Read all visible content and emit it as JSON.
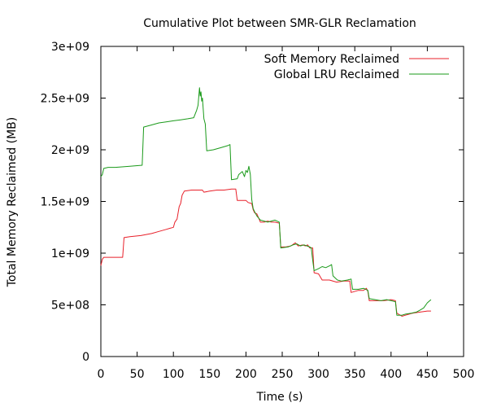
{
  "chart_data": {
    "type": "line",
    "title": "Cumulative Plot between SMR-GLR Reclamation",
    "xlabel": "Time (s)",
    "ylabel": "Total Memory Reclaimed (MB)",
    "xlim": [
      0,
      500
    ],
    "ylim": [
      0,
      3000000000
    ],
    "x_ticks": [
      0,
      50,
      100,
      150,
      200,
      250,
      300,
      350,
      400,
      450,
      500
    ],
    "x_tick_labels": [
      "0",
      "50",
      "100",
      "150",
      "200",
      "250",
      "300",
      "350",
      "400",
      "450",
      "500"
    ],
    "y_ticks": [
      0,
      500000000,
      1000000000,
      1500000000,
      2000000000,
      2500000000,
      3000000000
    ],
    "y_tick_labels": [
      "0",
      "5e+08",
      "1e+09",
      "1.5e+09",
      "2e+09",
      "2.5e+09",
      "3e+09"
    ],
    "grid": false,
    "legend_position": "top-right",
    "series": [
      {
        "name": "Soft Memory Reclaimed",
        "color": "#e8202a",
        "points": [
          [
            0,
            880000000
          ],
          [
            2,
            940000000
          ],
          [
            4,
            960000000
          ],
          [
            10,
            960000000
          ],
          [
            20,
            960000000
          ],
          [
            30,
            960000000
          ],
          [
            32,
            1150000000
          ],
          [
            40,
            1160000000
          ],
          [
            55,
            1170000000
          ],
          [
            70,
            1190000000
          ],
          [
            80,
            1210000000
          ],
          [
            90,
            1230000000
          ],
          [
            95,
            1240000000
          ],
          [
            100,
            1250000000
          ],
          [
            102,
            1300000000
          ],
          [
            105,
            1330000000
          ],
          [
            108,
            1450000000
          ],
          [
            110,
            1480000000
          ],
          [
            112,
            1560000000
          ],
          [
            115,
            1600000000
          ],
          [
            125,
            1610000000
          ],
          [
            140,
            1610000000
          ],
          [
            142,
            1590000000
          ],
          [
            150,
            1600000000
          ],
          [
            160,
            1610000000
          ],
          [
            170,
            1610000000
          ],
          [
            180,
            1620000000
          ],
          [
            186,
            1620000000
          ],
          [
            188,
            1510000000
          ],
          [
            195,
            1510000000
          ],
          [
            200,
            1510000000
          ],
          [
            203,
            1490000000
          ],
          [
            208,
            1480000000
          ],
          [
            210,
            1420000000
          ],
          [
            212,
            1390000000
          ],
          [
            215,
            1380000000
          ],
          [
            220,
            1300000000
          ],
          [
            225,
            1300000000
          ],
          [
            230,
            1310000000
          ],
          [
            235,
            1300000000
          ],
          [
            240,
            1300000000
          ],
          [
            246,
            1290000000
          ],
          [
            248,
            1060000000
          ],
          [
            255,
            1060000000
          ],
          [
            262,
            1070000000
          ],
          [
            268,
            1100000000
          ],
          [
            272,
            1070000000
          ],
          [
            278,
            1080000000
          ],
          [
            282,
            1070000000
          ],
          [
            285,
            1080000000
          ],
          [
            288,
            1050000000
          ],
          [
            292,
            1050000000
          ],
          [
            294,
            810000000
          ],
          [
            300,
            800000000
          ],
          [
            305,
            740000000
          ],
          [
            315,
            740000000
          ],
          [
            325,
            720000000
          ],
          [
            335,
            730000000
          ],
          [
            343,
            730000000
          ],
          [
            345,
            620000000
          ],
          [
            355,
            640000000
          ],
          [
            362,
            640000000
          ],
          [
            366,
            660000000
          ],
          [
            368,
            630000000
          ],
          [
            370,
            540000000
          ],
          [
            380,
            540000000
          ],
          [
            390,
            540000000
          ],
          [
            400,
            550000000
          ],
          [
            406,
            540000000
          ],
          [
            408,
            420000000
          ],
          [
            415,
            390000000
          ],
          [
            420,
            400000000
          ],
          [
            425,
            410000000
          ],
          [
            430,
            420000000
          ],
          [
            440,
            430000000
          ],
          [
            450,
            440000000
          ],
          [
            455,
            440000000
          ]
        ]
      },
      {
        "name": "Global LRU Reclaimed",
        "color": "#1a9a1a",
        "points": [
          [
            0,
            1740000000
          ],
          [
            2,
            1760000000
          ],
          [
            4,
            1820000000
          ],
          [
            10,
            1830000000
          ],
          [
            20,
            1830000000
          ],
          [
            40,
            1840000000
          ],
          [
            57,
            1850000000
          ],
          [
            59,
            2220000000
          ],
          [
            70,
            2240000000
          ],
          [
            80,
            2260000000
          ],
          [
            90,
            2270000000
          ],
          [
            100,
            2280000000
          ],
          [
            110,
            2290000000
          ],
          [
            120,
            2300000000
          ],
          [
            128,
            2310000000
          ],
          [
            132,
            2380000000
          ],
          [
            134,
            2430000000
          ],
          [
            136,
            2600000000
          ],
          [
            137,
            2520000000
          ],
          [
            138,
            2560000000
          ],
          [
            139,
            2470000000
          ],
          [
            140,
            2500000000
          ],
          [
            142,
            2300000000
          ],
          [
            144,
            2250000000
          ],
          [
            146,
            1990000000
          ],
          [
            155,
            2000000000
          ],
          [
            165,
            2020000000
          ],
          [
            175,
            2040000000
          ],
          [
            178,
            2050000000
          ],
          [
            180,
            1710000000
          ],
          [
            188,
            1720000000
          ],
          [
            190,
            1760000000
          ],
          [
            195,
            1790000000
          ],
          [
            198,
            1740000000
          ],
          [
            200,
            1800000000
          ],
          [
            202,
            1780000000
          ],
          [
            204,
            1840000000
          ],
          [
            206,
            1760000000
          ],
          [
            208,
            1520000000
          ],
          [
            210,
            1430000000
          ],
          [
            212,
            1400000000
          ],
          [
            215,
            1360000000
          ],
          [
            220,
            1320000000
          ],
          [
            225,
            1310000000
          ],
          [
            230,
            1300000000
          ],
          [
            235,
            1310000000
          ],
          [
            240,
            1320000000
          ],
          [
            246,
            1300000000
          ],
          [
            248,
            1050000000
          ],
          [
            258,
            1060000000
          ],
          [
            265,
            1080000000
          ],
          [
            270,
            1090000000
          ],
          [
            275,
            1070000000
          ],
          [
            280,
            1080000000
          ],
          [
            284,
            1070000000
          ],
          [
            288,
            1060000000
          ],
          [
            290,
            1050000000
          ],
          [
            292,
            930000000
          ],
          [
            294,
            830000000
          ],
          [
            300,
            850000000
          ],
          [
            305,
            870000000
          ],
          [
            310,
            860000000
          ],
          [
            316,
            880000000
          ],
          [
            318,
            890000000
          ],
          [
            320,
            780000000
          ],
          [
            326,
            740000000
          ],
          [
            332,
            730000000
          ],
          [
            340,
            740000000
          ],
          [
            345,
            750000000
          ],
          [
            347,
            650000000
          ],
          [
            355,
            650000000
          ],
          [
            362,
            660000000
          ],
          [
            368,
            640000000
          ],
          [
            370,
            560000000
          ],
          [
            378,
            550000000
          ],
          [
            386,
            540000000
          ],
          [
            394,
            550000000
          ],
          [
            400,
            540000000
          ],
          [
            406,
            530000000
          ],
          [
            408,
            400000000
          ],
          [
            415,
            400000000
          ],
          [
            420,
            410000000
          ],
          [
            428,
            420000000
          ],
          [
            435,
            430000000
          ],
          [
            440,
            450000000
          ],
          [
            445,
            470000000
          ],
          [
            450,
            520000000
          ],
          [
            455,
            550000000
          ]
        ]
      }
    ]
  }
}
